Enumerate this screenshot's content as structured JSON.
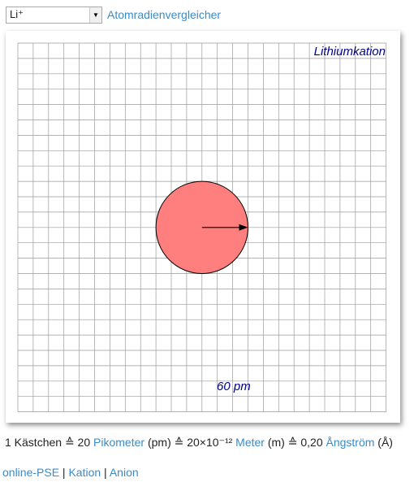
{
  "selector": {
    "value": "Li⁺"
  },
  "toolbar": {
    "compare_link": "Atomradienvergleicher"
  },
  "canvas": {
    "title": "Lithiumkation",
    "radius_label": "60 pm",
    "radius_pm": 60,
    "grid_cell_pm": 20,
    "circle_fill": "#ff7f7f",
    "label_color": "#00008b"
  },
  "info": {
    "prefix": "1 Kästchen ≙ 20 ",
    "pikometer_link": "Pikometer",
    "pm_part": " (pm) ≙ 20×10⁻¹² ",
    "meter_link": "Meter",
    "m_part": " (m) ≙ 0,20 ",
    "angstrom_link": "Ångström",
    "angstrom_suffix": " (Å)"
  },
  "footer": {
    "pse_link": "online-PSE",
    "sep1": " | ",
    "kation_link": "Kation",
    "sep2": " | ",
    "anion_link": "Anion"
  }
}
